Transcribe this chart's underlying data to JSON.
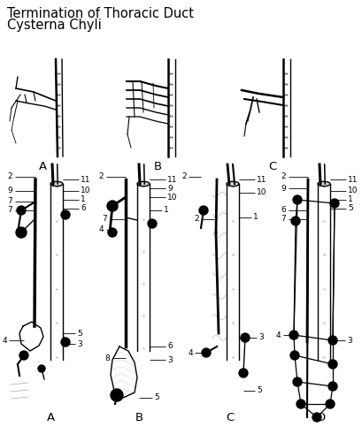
{
  "title_line1": "Termination of Thoracic Duct",
  "title_line2": "Cysterna Chyli",
  "title_fontsize": 10.5,
  "bg_color": "#ffffff",
  "label_fontsize": 6.5,
  "sublabel_fontsize": 9.5,
  "top_labels": [
    "A",
    "B",
    "C"
  ],
  "bottom_labels": [
    "A",
    "B",
    "C",
    "D"
  ]
}
